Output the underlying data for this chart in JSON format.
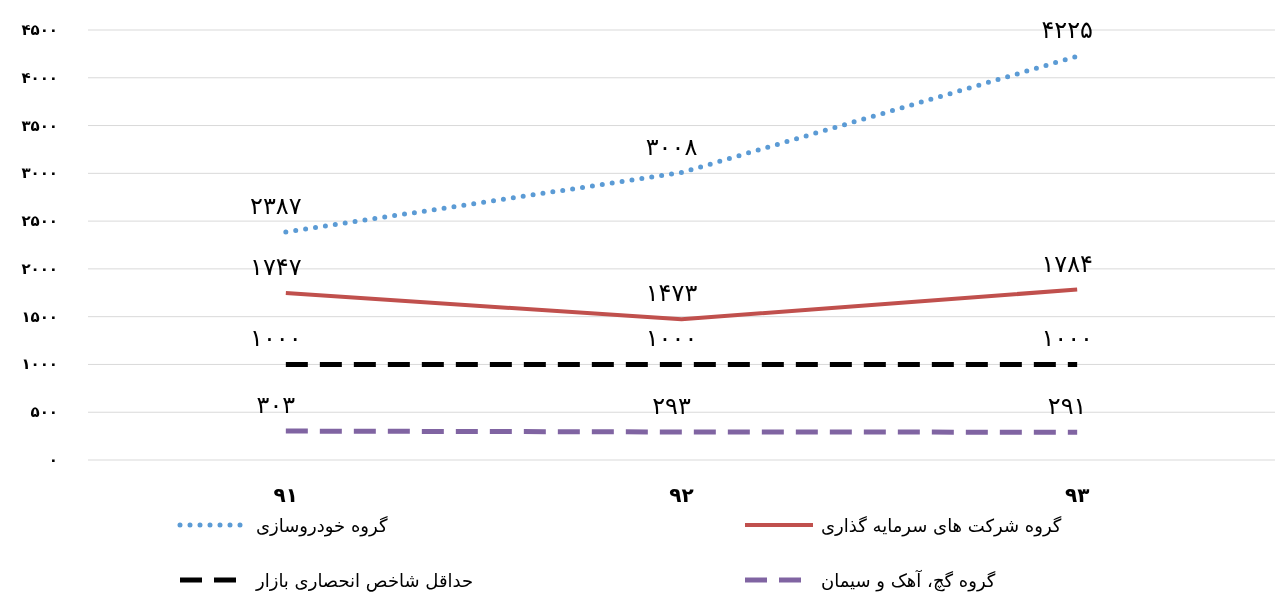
{
  "chart_data": {
    "type": "line",
    "categories": [
      "۹۱",
      "۹۲",
      "۹۳"
    ],
    "ylim": [
      0,
      4500
    ],
    "yticks": [
      {
        "value": 0,
        "label": "۰"
      },
      {
        "value": 500,
        "label": "۵۰۰"
      },
      {
        "value": 1000,
        "label": "۱۰۰۰"
      },
      {
        "value": 1500,
        "label": "۱۵۰۰"
      },
      {
        "value": 2000,
        "label": "۲۰۰۰"
      },
      {
        "value": 2500,
        "label": "۲۵۰۰"
      },
      {
        "value": 3000,
        "label": "۳۰۰۰"
      },
      {
        "value": 3500,
        "label": "۳۵۰۰"
      },
      {
        "value": 4000,
        "label": "۴۰۰۰"
      },
      {
        "value": 4500,
        "label": "۴۵۰۰"
      }
    ],
    "grid": "y",
    "legend": "bottom",
    "marker": "none",
    "series": [
      {
        "name": "گروه خودروسازی",
        "color": "#5b9bd5",
        "line_style": "dotted",
        "values": [
          2387,
          3008,
          4225
        ],
        "value_labels": [
          "۲۳۸۷",
          "۳۰۰۸",
          "۴۲۲۵"
        ]
      },
      {
        "name": "گروه شرکت های سرمایه گذاری",
        "color": "#c0504d",
        "line_style": "solid",
        "values": [
          1747,
          1473,
          1784
        ],
        "value_labels": [
          "۱۷۴۷",
          "۱۴۷۳",
          "۱۷۸۴"
        ]
      },
      {
        "name": "حداقل شاخص انحصاری بازار",
        "color": "#000000",
        "line_style": "dashed",
        "values": [
          1000,
          1000,
          1000
        ],
        "value_labels": [
          "۱۰۰۰",
          "۱۰۰۰",
          "۱۰۰۰"
        ]
      },
      {
        "name": "گروه گچ، آهک و سیمان",
        "color": "#8064a2",
        "line_style": "dashed",
        "values": [
          303,
          293,
          291
        ],
        "value_labels": [
          "۳۰۳",
          "۲۹۳",
          "۲۹۱"
        ]
      }
    ]
  }
}
